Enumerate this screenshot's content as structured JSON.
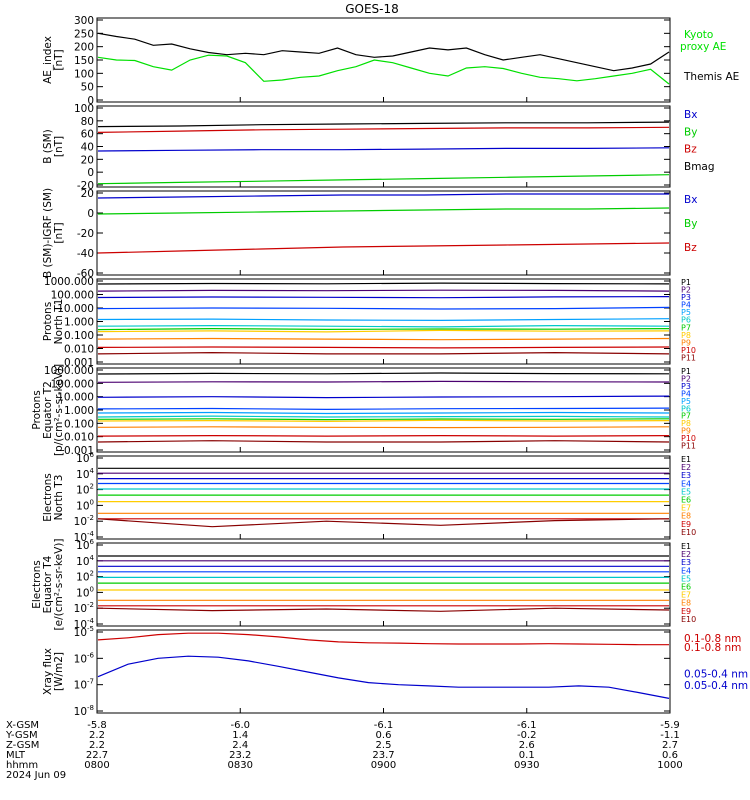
{
  "title": "GOES-18",
  "chart_data": [
    {
      "type": "line",
      "id": "ae",
      "ylabel": "AE_index\n[nT]",
      "yticks": [
        "300",
        "250",
        "200",
        "150",
        "100",
        "50",
        "0"
      ],
      "ylim": [
        0,
        300
      ],
      "series": [
        {
          "name": "Kyoto proxy AE",
          "label_lines": [
            "Kyoto",
            "proxy AE"
          ],
          "color": "#00e000",
          "values": [
            160,
            150,
            148,
            125,
            112,
            150,
            168,
            165,
            140,
            70,
            75,
            85,
            90,
            110,
            125,
            150,
            140,
            120,
            100,
            90,
            120,
            125,
            118,
            100,
            85,
            80,
            72,
            80,
            90,
            100,
            115,
            60
          ]
        },
        {
          "name": "Themis AE",
          "label_lines": [
            "Themis AE"
          ],
          "color": "#000000",
          "values": [
            250,
            238,
            228,
            205,
            210,
            192,
            178,
            170,
            175,
            170,
            185,
            180,
            175,
            195,
            170,
            160,
            165,
            180,
            195,
            188,
            195,
            170,
            150,
            160,
            170,
            155,
            140,
            125,
            110,
            120,
            135,
            180
          ]
        }
      ]
    },
    {
      "type": "line",
      "id": "bsm",
      "ylabel": "B (SM)\n[nT]",
      "yticks": [
        "100",
        "80",
        "60",
        "40",
        "20",
        "0",
        "-20"
      ],
      "ylim": [
        -20,
        100
      ],
      "series": [
        {
          "name": "Bx",
          "color": "#0000cc",
          "values": [
            33,
            34,
            35,
            35,
            36,
            37,
            37,
            38
          ]
        },
        {
          "name": "By",
          "color": "#00cc00",
          "values": [
            -18,
            -16,
            -14,
            -12,
            -10,
            -8,
            -6,
            -4
          ]
        },
        {
          "name": "Bz",
          "color": "#cc0000",
          "values": [
            62,
            64,
            66,
            67,
            68,
            69,
            69,
            70
          ]
        },
        {
          "name": "Bmag",
          "color": "#000000",
          "values": [
            71,
            72,
            74,
            75,
            76,
            77,
            77,
            78
          ]
        }
      ]
    },
    {
      "type": "line",
      "id": "bigrf",
      "ylabel": "B (SM)-IGRF (SM)\n[nT]",
      "yticks": [
        "20",
        "0",
        "-20",
        "-40",
        "-60"
      ],
      "ylim": [
        -60,
        20
      ],
      "series": [
        {
          "name": "Bx",
          "color": "#0000cc",
          "values": [
            15,
            16,
            17,
            18,
            18,
            19,
            19,
            19
          ]
        },
        {
          "name": "By",
          "color": "#00cc00",
          "values": [
            -1,
            0,
            1,
            2,
            3,
            4,
            4,
            5
          ]
        },
        {
          "name": "Bz",
          "color": "#cc0000",
          "values": [
            -40,
            -38,
            -36,
            -34,
            -33,
            -32,
            -31,
            -30
          ]
        }
      ]
    },
    {
      "type": "line",
      "id": "protons-t1",
      "ylabel": "Protons\nNorth T1",
      "scale": "log",
      "yticks": [
        "1000.000",
        "100.000",
        "10.000",
        "1.000",
        "0.100",
        "0.010",
        "0.001"
      ],
      "series": [
        {
          "name": "P1",
          "color": "#000000",
          "values": [
            600,
            650,
            620,
            700,
            640,
            610
          ]
        },
        {
          "name": "P2",
          "color": "#4b0070",
          "values": [
            180,
            200,
            190,
            210,
            200,
            180
          ]
        },
        {
          "name": "P3",
          "color": "#0000cc",
          "values": [
            60,
            65,
            62,
            58,
            66,
            70
          ]
        },
        {
          "name": "P4",
          "color": "#0040ff",
          "values": [
            9,
            10,
            9.5,
            8.5,
            9,
            11
          ]
        },
        {
          "name": "P5",
          "color": "#00a0ff",
          "values": [
            1.4,
            1.5,
            1.3,
            1.2,
            1.4,
            1.6
          ]
        },
        {
          "name": "P6",
          "color": "#00c8c8",
          "values": [
            0.45,
            0.5,
            0.45,
            0.4,
            0.5,
            0.45
          ]
        },
        {
          "name": "P7",
          "color": "#00cc00",
          "values": [
            0.25,
            0.3,
            0.26,
            0.28,
            0.27,
            0.3
          ]
        },
        {
          "name": "P8",
          "color": "#ffcc00",
          "values": [
            0.18,
            0.2,
            0.17,
            0.22,
            0.19,
            0.2
          ]
        },
        {
          "name": "P9",
          "color": "#ff8000",
          "values": [
            0.05,
            0.055,
            0.05,
            0.045,
            0.05,
            0.055
          ]
        },
        {
          "name": "P10",
          "color": "#cc0000",
          "values": [
            0.012,
            0.013,
            0.012,
            0.011,
            0.012,
            0.013
          ]
        },
        {
          "name": "P11",
          "color": "#880000",
          "values": [
            0.004,
            0.005,
            0.004,
            0.004,
            0.005,
            0.004
          ]
        }
      ]
    },
    {
      "type": "line",
      "id": "protons-t2",
      "ylabel": "Protons\nEquator T2\n[p/(cm²-s-sr-keV)]",
      "scale": "log",
      "yticks": [
        "1000.000",
        "100.000",
        "10.000",
        "1.000",
        "0.100",
        "0.010",
        "0.001"
      ],
      "series": [
        {
          "name": "P1",
          "color": "#000000",
          "values": [
            500,
            560,
            520,
            600,
            540,
            520
          ]
        },
        {
          "name": "P2",
          "color": "#4b0070",
          "values": [
            120,
            130,
            125,
            140,
            130,
            125
          ]
        },
        {
          "name": "P3",
          "color": "#0000cc",
          "values": [
            9,
            10,
            8.5,
            9.5,
            10,
            11
          ]
        },
        {
          "name": "P4",
          "color": "#0040ff",
          "values": [
            1.2,
            1.3,
            1.1,
            1.25,
            1.3,
            1.4
          ]
        },
        {
          "name": "P5",
          "color": "#00a0ff",
          "values": [
            0.6,
            0.65,
            0.55,
            0.6,
            0.65,
            0.6
          ]
        },
        {
          "name": "P6",
          "color": "#00c8c8",
          "values": [
            0.3,
            0.35,
            0.3,
            0.32,
            0.33,
            0.3
          ]
        },
        {
          "name": "P7",
          "color": "#00cc00",
          "values": [
            0.2,
            0.22,
            0.19,
            0.21,
            0.2,
            0.22
          ]
        },
        {
          "name": "P8",
          "color": "#ffcc00",
          "values": [
            0.15,
            0.16,
            0.14,
            0.17,
            0.15,
            0.16
          ]
        },
        {
          "name": "P9",
          "color": "#ff8000",
          "values": [
            0.05,
            0.055,
            0.05,
            0.048,
            0.05,
            0.055
          ]
        },
        {
          "name": "P10",
          "color": "#cc0000",
          "values": [
            0.011,
            0.012,
            0.011,
            0.012,
            0.011,
            0.012
          ]
        },
        {
          "name": "P11",
          "color": "#880000",
          "values": [
            0.004,
            0.005,
            0.004,
            0.004,
            0.005,
            0.004
          ]
        }
      ]
    },
    {
      "type": "line",
      "id": "electrons-t3",
      "ylabel": "Electrons\nNorth T3",
      "scale": "log",
      "yticks": [
        "10^6",
        "10^4",
        "10^2",
        "10^0",
        "10^-2",
        "10^-4"
      ],
      "series": [
        {
          "name": "E1",
          "color": "#000000",
          "values": [
            50000,
            50000,
            50000,
            50000,
            50000,
            50000
          ]
        },
        {
          "name": "E2",
          "color": "#4b0070",
          "values": [
            12000,
            12000,
            12000,
            12000,
            12000,
            12000
          ]
        },
        {
          "name": "E3",
          "color": "#0000cc",
          "values": [
            2500,
            2500,
            2500,
            2500,
            2500,
            2500
          ]
        },
        {
          "name": "E4",
          "color": "#0040ff",
          "values": [
            600,
            600,
            600,
            600,
            600,
            600
          ]
        },
        {
          "name": "E5",
          "color": "#00c8c8",
          "values": [
            120,
            120,
            120,
            120,
            120,
            120
          ]
        },
        {
          "name": "E6",
          "color": "#00cc00",
          "values": [
            20,
            20,
            20,
            20,
            20,
            20
          ]
        },
        {
          "name": "E7",
          "color": "#ffcc00",
          "values": [
            3,
            3,
            3,
            3,
            3,
            3
          ]
        },
        {
          "name": "E8",
          "color": "#ff8000",
          "values": [
            0.1,
            0.1,
            0.1,
            0.1,
            0.1,
            0.1
          ]
        },
        {
          "name": "E9",
          "color": "#cc0000",
          "values": [
            0.02,
            0.02,
            0.02,
            0.02,
            0.02,
            0.02
          ]
        },
        {
          "name": "E10",
          "color": "#880000",
          "values": [
            0.02,
            0.002,
            0.01,
            0.003,
            0.012,
            0.02
          ]
        }
      ]
    },
    {
      "type": "line",
      "id": "electrons-t4",
      "ylabel": "Electrons\nEquator T4\n[e/(cm²-s-sr-keV)]",
      "scale": "log",
      "yticks": [
        "10^6",
        "10^4",
        "10^2",
        "10^0",
        "10^-2",
        "10^-4"
      ],
      "series": [
        {
          "name": "E1",
          "color": "#000000",
          "values": [
            40000,
            40000,
            40000,
            40000,
            40000,
            40000
          ]
        },
        {
          "name": "E2",
          "color": "#4b0070",
          "values": [
            10000,
            10000,
            10000,
            10000,
            10000,
            10000
          ]
        },
        {
          "name": "E3",
          "color": "#0000cc",
          "values": [
            2000,
            2000,
            2000,
            2000,
            2000,
            2000
          ]
        },
        {
          "name": "E4",
          "color": "#0040ff",
          "values": [
            400,
            400,
            400,
            400,
            400,
            400
          ]
        },
        {
          "name": "E5",
          "color": "#00c8c8",
          "values": [
            80,
            80,
            80,
            80,
            80,
            80
          ]
        },
        {
          "name": "E6",
          "color": "#00cc00",
          "values": [
            15,
            15,
            15,
            15,
            15,
            15
          ]
        },
        {
          "name": "E7",
          "color": "#ffcc00",
          "values": [
            2,
            2,
            2,
            2,
            2,
            2
          ]
        },
        {
          "name": "E8",
          "color": "#ff8000",
          "values": [
            0.1,
            0.1,
            0.1,
            0.1,
            0.1,
            0.1
          ]
        },
        {
          "name": "E9",
          "color": "#cc0000",
          "values": [
            0.02,
            0.02,
            0.02,
            0.02,
            0.02,
            0.02
          ]
        },
        {
          "name": "E10",
          "color": "#880000",
          "values": [
            0.01,
            0.005,
            0.008,
            0.004,
            0.01,
            0.006
          ]
        }
      ]
    },
    {
      "type": "line",
      "id": "xray",
      "ylabel": "Xray flux\n[W/m2]",
      "scale": "log",
      "yticks": [
        "10^-5",
        "10^-6",
        "10^-7",
        "10^-8"
      ],
      "series": [
        {
          "name": "0.1-0.8 nm",
          "color": "#cc0000",
          "values": [
            5e-06,
            6e-06,
            8e-06,
            9e-06,
            9e-06,
            8e-06,
            6.5e-06,
            5e-06,
            4.2e-06,
            3.9e-06,
            3.8e-06,
            3.6e-06,
            3.5e-06,
            3.5e-06,
            3.5e-06,
            3.6e-06,
            3.5e-06,
            3.4e-06,
            3.3e-06,
            3.3e-06
          ]
        },
        {
          "name": "0.05-0.4 nm",
          "color": "#0000cc",
          "values": [
            2e-07,
            6e-07,
            1e-06,
            1.2e-06,
            1.1e-06,
            8e-07,
            5e-07,
            3e-07,
            1.8e-07,
            1.2e-07,
            1e-07,
            9e-08,
            8e-08,
            8e-08,
            8e-08,
            8e-08,
            9e-08,
            8e-08,
            5e-08,
            3e-08
          ]
        }
      ]
    }
  ],
  "x_axis": {
    "row_labels": [
      "X-GSM",
      "Y-GSM",
      "Z-GSM",
      "MLT",
      "hhmm",
      "2024 Jun 09"
    ],
    "columns": [
      [
        "-5.8",
        "2.2",
        "2.2",
        "22.7",
        "0800"
      ],
      [
        "-6.0",
        "1.4",
        "2.4",
        "23.2",
        "0830"
      ],
      [
        "-6.1",
        "0.6",
        "2.5",
        "23.7",
        "0900"
      ],
      [
        "-6.1",
        "-0.2",
        "2.6",
        "0.1",
        "0930"
      ],
      [
        "-5.9",
        "-1.1",
        "2.7",
        "0.6",
        "1000"
      ]
    ]
  }
}
